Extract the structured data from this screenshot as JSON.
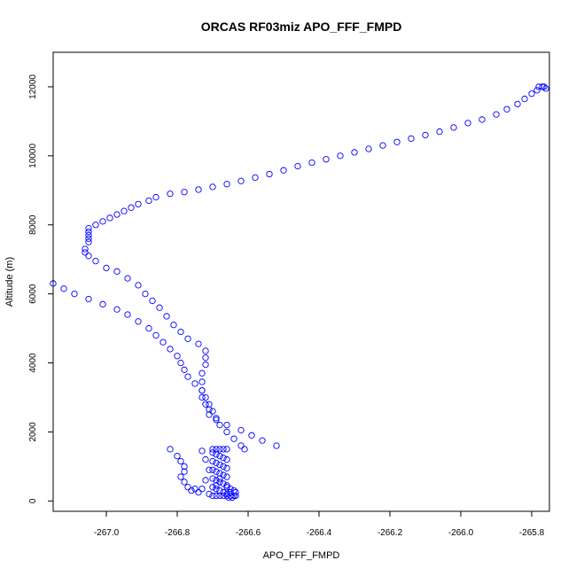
{
  "chart_data": {
    "type": "scatter",
    "title": "ORCAS RF03miz APO_FFF_FMPD",
    "xlabel": "APO_FFF_FMPD",
    "ylabel": "Altitude (m)",
    "xlim": [
      -267.15,
      -265.75
    ],
    "ylim": [
      -300,
      13000
    ],
    "xticks": [
      -267.0,
      -266.8,
      -266.6,
      -266.4,
      -266.2,
      -266.0,
      -265.8
    ],
    "xtick_labels": [
      "-267.0",
      "-266.8",
      "-266.6",
      "-266.4",
      "-266.2",
      "-266.0",
      "-265.8"
    ],
    "yticks": [
      0,
      2000,
      4000,
      6000,
      8000,
      10000,
      12000
    ],
    "ytick_labels": [
      "0",
      "2000",
      "4000",
      "6000",
      "8000",
      "10000",
      "12000"
    ],
    "marker_color": "#0000ff",
    "series": [
      {
        "name": "APO_FFF_FMPD",
        "points": [
          [
            -265.78,
            12000
          ],
          [
            -265.77,
            12000
          ],
          [
            -265.765,
            12000
          ],
          [
            -265.76,
            11950
          ],
          [
            -265.785,
            11900
          ],
          [
            -265.8,
            11800
          ],
          [
            -265.82,
            11650
          ],
          [
            -265.84,
            11500
          ],
          [
            -265.87,
            11350
          ],
          [
            -265.9,
            11200
          ],
          [
            -265.94,
            11050
          ],
          [
            -265.98,
            10950
          ],
          [
            -266.02,
            10820
          ],
          [
            -266.06,
            10700
          ],
          [
            -266.1,
            10600
          ],
          [
            -266.14,
            10500
          ],
          [
            -266.18,
            10400
          ],
          [
            -266.22,
            10300
          ],
          [
            -266.26,
            10200
          ],
          [
            -266.3,
            10100
          ],
          [
            -266.34,
            10000
          ],
          [
            -266.38,
            9900
          ],
          [
            -266.42,
            9800
          ],
          [
            -266.46,
            9700
          ],
          [
            -266.5,
            9580
          ],
          [
            -266.54,
            9470
          ],
          [
            -266.58,
            9370
          ],
          [
            -266.62,
            9270
          ],
          [
            -266.66,
            9180
          ],
          [
            -266.7,
            9100
          ],
          [
            -266.74,
            9020
          ],
          [
            -266.78,
            8950
          ],
          [
            -266.82,
            8900
          ],
          [
            -266.86,
            8800
          ],
          [
            -266.88,
            8700
          ],
          [
            -266.91,
            8600
          ],
          [
            -266.93,
            8500
          ],
          [
            -266.95,
            8400
          ],
          [
            -266.97,
            8300
          ],
          [
            -266.99,
            8200
          ],
          [
            -267.01,
            8100
          ],
          [
            -267.03,
            8000
          ],
          [
            -267.05,
            7900
          ],
          [
            -267.05,
            7800
          ],
          [
            -267.05,
            7700
          ],
          [
            -267.05,
            7600
          ],
          [
            -267.05,
            7500
          ],
          [
            -267.06,
            7300
          ],
          [
            -267.06,
            7200
          ],
          [
            -267.05,
            7100
          ],
          [
            -267.03,
            6950
          ],
          [
            -267.0,
            6750
          ],
          [
            -266.97,
            6650
          ],
          [
            -266.94,
            6450
          ],
          [
            -266.91,
            6250
          ],
          [
            -266.89,
            6000
          ],
          [
            -266.87,
            5800
          ],
          [
            -266.85,
            5600
          ],
          [
            -266.83,
            5350
          ],
          [
            -266.81,
            5100
          ],
          [
            -266.79,
            4900
          ],
          [
            -266.77,
            4700
          ],
          [
            -266.74,
            4550
          ],
          [
            -266.72,
            4350
          ],
          [
            -266.72,
            4150
          ],
          [
            -266.72,
            3950
          ],
          [
            -266.73,
            3700
          ],
          [
            -266.73,
            3450
          ],
          [
            -266.73,
            3200
          ],
          [
            -266.73,
            3000
          ],
          [
            -266.72,
            2800
          ],
          [
            -266.71,
            2650
          ],
          [
            -266.71,
            2500
          ],
          [
            -266.69,
            2350
          ],
          [
            -266.66,
            2200
          ],
          [
            -266.62,
            2050
          ],
          [
            -266.59,
            1900
          ],
          [
            -266.56,
            1750
          ],
          [
            -266.52,
            1600
          ],
          [
            -267.15,
            6300
          ],
          [
            -267.12,
            6150
          ],
          [
            -267.09,
            6000
          ],
          [
            -267.05,
            5850
          ],
          [
            -267.01,
            5700
          ],
          [
            -266.97,
            5550
          ],
          [
            -266.94,
            5400
          ],
          [
            -266.91,
            5200
          ],
          [
            -266.88,
            5000
          ],
          [
            -266.86,
            4800
          ],
          [
            -266.84,
            4600
          ],
          [
            -266.82,
            4400
          ],
          [
            -266.8,
            4200
          ],
          [
            -266.79,
            4000
          ],
          [
            -266.78,
            3800
          ],
          [
            -266.77,
            3600
          ],
          [
            -266.75,
            3400
          ],
          [
            -266.73,
            3200
          ],
          [
            -266.72,
            3000
          ],
          [
            -266.71,
            2800
          ],
          [
            -266.7,
            2600
          ],
          [
            -266.69,
            2400
          ],
          [
            -266.68,
            2200
          ],
          [
            -266.66,
            2000
          ],
          [
            -266.64,
            1800
          ],
          [
            -266.62,
            1600
          ],
          [
            -266.61,
            1500
          ],
          [
            -266.82,
            1500
          ],
          [
            -266.8,
            1300
          ],
          [
            -266.79,
            1150
          ],
          [
            -266.78,
            1000
          ],
          [
            -266.78,
            850
          ],
          [
            -266.79,
            700
          ],
          [
            -266.78,
            550
          ],
          [
            -266.77,
            400
          ],
          [
            -266.76,
            300
          ],
          [
            -266.7,
            1500
          ],
          [
            -266.69,
            1500
          ],
          [
            -266.68,
            1500
          ],
          [
            -266.67,
            1500
          ],
          [
            -266.66,
            1500
          ],
          [
            -266.7,
            1400
          ],
          [
            -266.69,
            1350
          ],
          [
            -266.68,
            1300
          ],
          [
            -266.67,
            1250
          ],
          [
            -266.66,
            1200
          ],
          [
            -266.7,
            1150
          ],
          [
            -266.69,
            1100
          ],
          [
            -266.68,
            1050
          ],
          [
            -266.67,
            1000
          ],
          [
            -266.66,
            950
          ],
          [
            -266.7,
            900
          ],
          [
            -266.69,
            850
          ],
          [
            -266.68,
            800
          ],
          [
            -266.67,
            750
          ],
          [
            -266.66,
            700
          ],
          [
            -266.7,
            650
          ],
          [
            -266.69,
            600
          ],
          [
            -266.68,
            550
          ],
          [
            -266.67,
            500
          ],
          [
            -266.66,
            450
          ],
          [
            -266.7,
            400
          ],
          [
            -266.69,
            350
          ],
          [
            -266.68,
            300
          ],
          [
            -266.67,
            250
          ],
          [
            -266.66,
            200
          ],
          [
            -266.7,
            150
          ],
          [
            -266.69,
            150
          ],
          [
            -266.68,
            150
          ],
          [
            -266.67,
            150
          ],
          [
            -266.66,
            150
          ],
          [
            -266.65,
            150
          ],
          [
            -266.64,
            150
          ],
          [
            -266.65,
            250
          ],
          [
            -266.64,
            300
          ],
          [
            -266.65,
            350
          ],
          [
            -266.66,
            400
          ],
          [
            -266.655,
            100
          ],
          [
            -266.645,
            100
          ],
          [
            -266.635,
            150
          ],
          [
            -266.635,
            250
          ],
          [
            -266.73,
            1450
          ],
          [
            -266.72,
            1200
          ],
          [
            -266.71,
            900
          ],
          [
            -266.72,
            600
          ],
          [
            -266.73,
            350
          ],
          [
            -266.74,
            250
          ],
          [
            -266.75,
            350
          ],
          [
            -266.71,
            200
          ],
          [
            -266.69,
            450
          ],
          [
            -266.68,
            650
          ]
        ]
      }
    ]
  }
}
